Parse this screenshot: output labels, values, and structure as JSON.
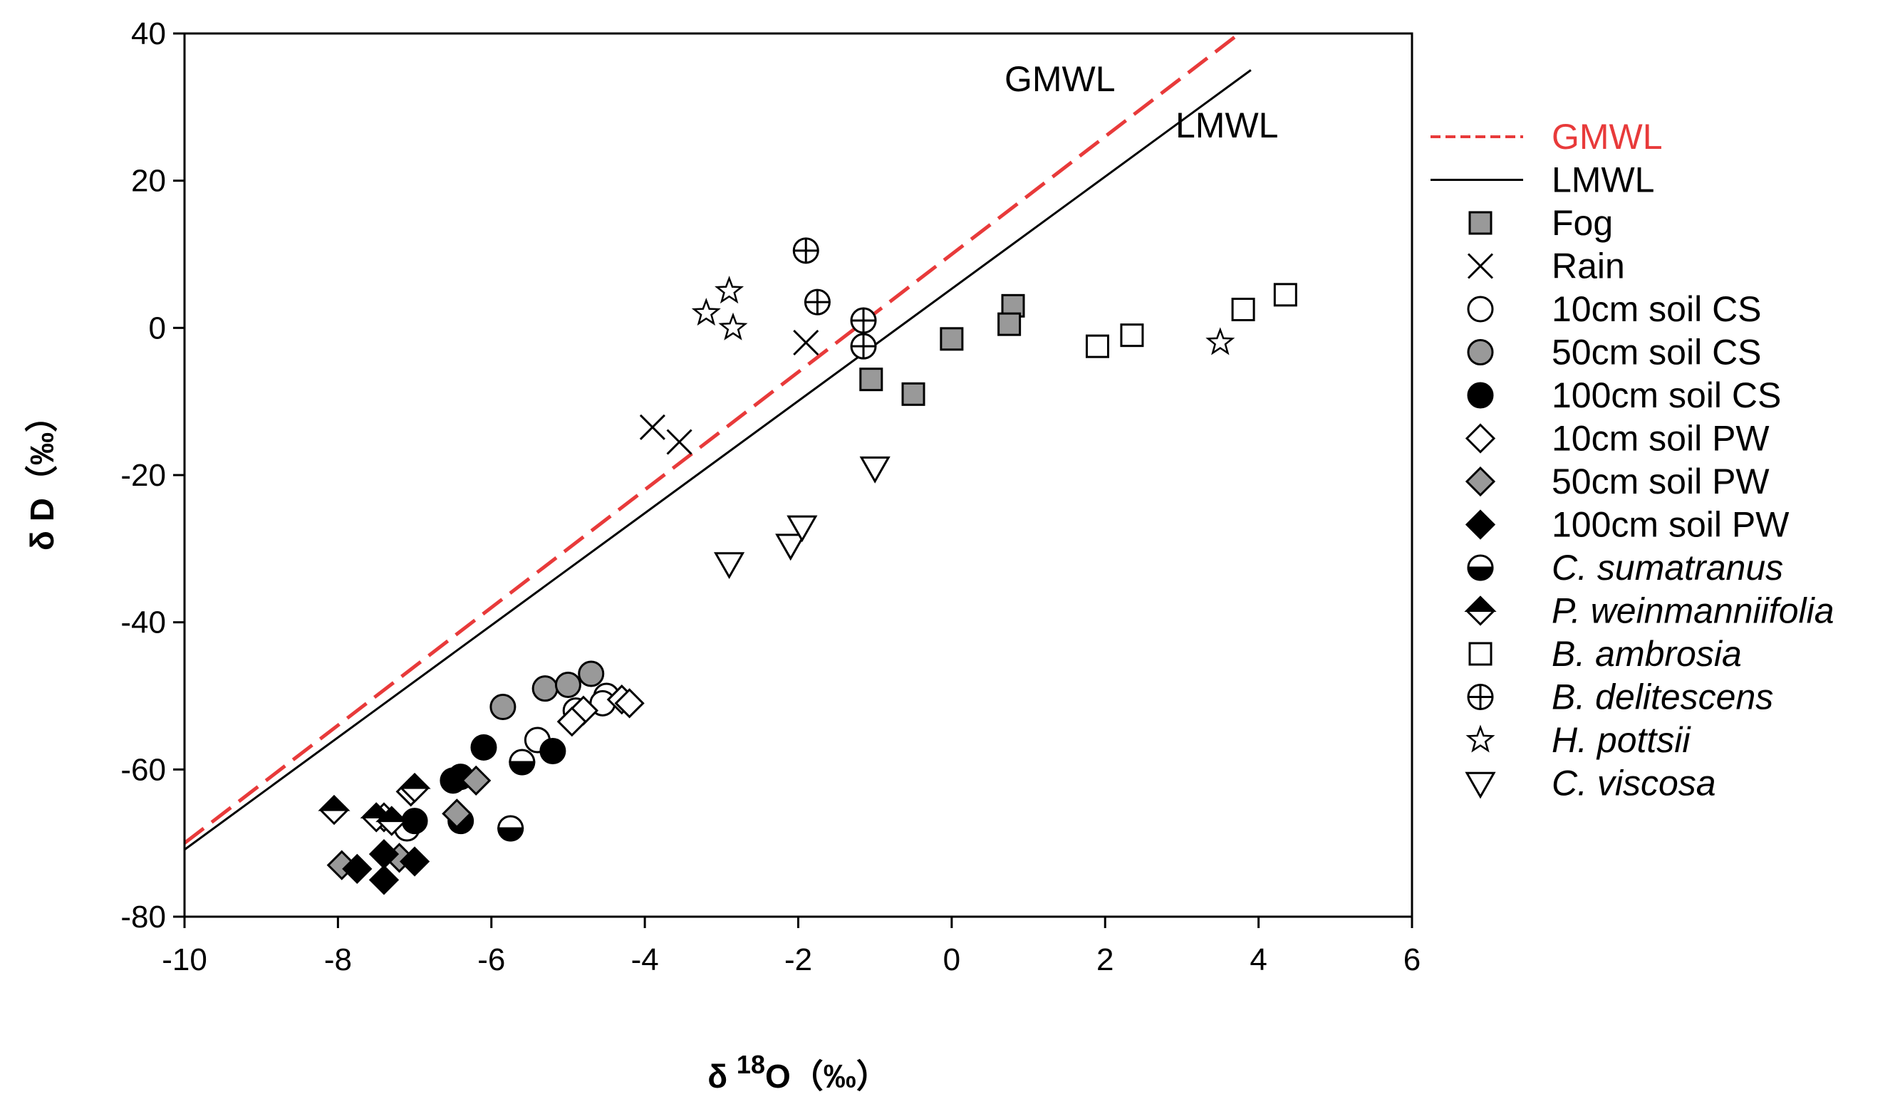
{
  "chart_data": {
    "type": "scatter",
    "title": "",
    "xlabel": "δ 18O（‰）",
    "xlabel_prefix": "δ ",
    "xlabel_sup": "18",
    "xlabel_suffix": "O（‰）",
    "ylabel": "δ D（‰）",
    "xlim": [
      -10,
      6
    ],
    "ylim": [
      -80,
      40
    ],
    "xticks": [
      -10,
      -8,
      -6,
      -4,
      -2,
      0,
      2,
      4,
      6
    ],
    "yticks": [
      -80,
      -60,
      -40,
      -20,
      0,
      20,
      40
    ],
    "grid": false,
    "legend_position": "right",
    "lines": [
      {
        "name": "GMWL",
        "label": "GMWL",
        "slope": 8.0,
        "intercept": 10.0,
        "color": "#e83a3a",
        "style": "dashed",
        "x_range": [
          -10,
          3.75
        ]
      },
      {
        "name": "LMWL",
        "label": "LMWL",
        "slope": 7.62,
        "intercept": 5.31,
        "color": "#000000",
        "style": "solid",
        "x_range": [
          -10,
          3.9
        ]
      }
    ],
    "series": [
      {
        "name": "Fog",
        "marker": "square",
        "fill": "#999999",
        "points": [
          [
            0.8,
            3
          ],
          [
            0.75,
            0.5
          ],
          [
            0,
            -1.5
          ],
          [
            -1.05,
            -7
          ],
          [
            -0.5,
            -9
          ]
        ]
      },
      {
        "name": "Rain",
        "marker": "x",
        "fill": "none",
        "points": [
          [
            -1.9,
            -2
          ],
          [
            -3.9,
            -13.5
          ],
          [
            -3.55,
            -15.5
          ]
        ]
      },
      {
        "name": "10cm soil CS",
        "marker": "circle",
        "fill": "#ffffff",
        "points": [
          [
            -4.5,
            -50
          ],
          [
            -4.55,
            -51
          ],
          [
            -5.4,
            -56
          ],
          [
            -7.1,
            -68
          ],
          [
            -4.9,
            -52
          ]
        ]
      },
      {
        "name": "50cm soil CS",
        "marker": "circle",
        "fill": "#999999",
        "points": [
          [
            -5.85,
            -51.5
          ],
          [
            -5.3,
            -49
          ],
          [
            -5.0,
            -48.5
          ],
          [
            -4.7,
            -47
          ]
        ]
      },
      {
        "name": "100cm soil CS",
        "marker": "circle",
        "fill": "#000000",
        "points": [
          [
            -6.1,
            -57
          ],
          [
            -6.5,
            -61.5
          ],
          [
            -6.4,
            -61
          ],
          [
            -5.2,
            -57.5
          ],
          [
            -6.4,
            -67
          ],
          [
            -7.0,
            -67
          ]
        ]
      },
      {
        "name": "10cm soil PW",
        "marker": "diamond",
        "fill": "#ffffff",
        "points": [
          [
            -4.3,
            -50.5
          ],
          [
            -4.2,
            -51
          ],
          [
            -4.8,
            -52
          ],
          [
            -4.95,
            -53.5
          ],
          [
            -7.4,
            -66.5
          ],
          [
            -7.05,
            -63
          ]
        ]
      },
      {
        "name": "50cm soil PW",
        "marker": "diamond",
        "fill": "#999999",
        "points": [
          [
            -6.2,
            -61.5
          ],
          [
            -6.45,
            -66
          ],
          [
            -7.95,
            -73
          ],
          [
            -7.2,
            -72
          ]
        ]
      },
      {
        "name": "100cm soil PW",
        "marker": "diamond",
        "fill": "#000000",
        "points": [
          [
            -7.4,
            -71.5
          ],
          [
            -7.75,
            -73.5
          ],
          [
            -7.0,
            -72.5
          ],
          [
            -7.4,
            -75
          ]
        ]
      },
      {
        "name": "C. sumatranus",
        "marker": "half-circle",
        "fill": "#000000",
        "points": [
          [
            -5.6,
            -59
          ],
          [
            -5.75,
            -68
          ]
        ]
      },
      {
        "name": "P. weinmanniifolia",
        "marker": "half-diamond",
        "fill": "#000000",
        "points": [
          [
            -8.05,
            -65.5
          ],
          [
            -7.5,
            -66.5
          ],
          [
            -7.0,
            -62.5
          ],
          [
            -7.3,
            -67
          ]
        ]
      },
      {
        "name": "B. ambrosia",
        "marker": "square",
        "fill": "#ffffff",
        "points": [
          [
            4.35,
            4.5
          ],
          [
            3.8,
            2.5
          ],
          [
            2.35,
            -1
          ],
          [
            1.9,
            -2.5
          ]
        ]
      },
      {
        "name": "B. delitescens",
        "marker": "crossed-circle",
        "fill": "#ffffff",
        "points": [
          [
            -1.9,
            10.5
          ],
          [
            -1.75,
            3.5
          ],
          [
            -1.15,
            1
          ],
          [
            -1.15,
            -2.5
          ]
        ]
      },
      {
        "name": "H. pottsii",
        "marker": "star",
        "fill": "#ffffff",
        "points": [
          [
            -3.2,
            2
          ],
          [
            -2.9,
            5
          ],
          [
            -2.85,
            0
          ],
          [
            3.5,
            -2
          ]
        ]
      },
      {
        "name": "C. viscosa",
        "marker": "triangle-down",
        "fill": "#ffffff",
        "points": [
          [
            -2.9,
            -32
          ],
          [
            -2.1,
            -29.5
          ],
          [
            -1.95,
            -27
          ],
          [
            -1.0,
            -19
          ]
        ]
      }
    ],
    "line_labels": [
      {
        "text": "GMWL"
      },
      {
        "text": "LMWL"
      }
    ],
    "legend": [
      {
        "label": "GMWL",
        "type": "line",
        "color": "#e83a3a",
        "style": "dashed",
        "text_color": "#e83a3a",
        "italic": false
      },
      {
        "label": "LMWL",
        "type": "line",
        "color": "#000000",
        "style": "solid",
        "text_color": "#000000",
        "italic": false
      },
      {
        "label": "Fog",
        "type": "marker",
        "series": "Fog",
        "italic": false
      },
      {
        "label": "Rain",
        "type": "marker",
        "series": "Rain",
        "italic": false
      },
      {
        "label": "10cm soil CS",
        "type": "marker",
        "series": "10cm soil CS",
        "italic": false
      },
      {
        "label": "50cm soil CS",
        "type": "marker",
        "series": "50cm soil CS",
        "italic": false
      },
      {
        "label": "100cm soil CS",
        "type": "marker",
        "series": "100cm soil CS",
        "italic": false
      },
      {
        "label": "10cm soil PW",
        "type": "marker",
        "series": "10cm soil PW",
        "italic": false
      },
      {
        "label": "50cm soil PW",
        "type": "marker",
        "series": "50cm soil PW",
        "italic": false
      },
      {
        "label": "100cm soil PW",
        "type": "marker",
        "series": "100cm soil PW",
        "italic": false
      },
      {
        "label": "C. sumatranus",
        "type": "marker",
        "series": "C. sumatranus",
        "italic": true
      },
      {
        "label": "P. weinmanniifolia",
        "type": "marker",
        "series": "P. weinmanniifolia",
        "italic": true
      },
      {
        "label": "B. ambrosia",
        "type": "marker",
        "series": "B. ambrosia",
        "italic": true
      },
      {
        "label": "B. delitescens",
        "type": "marker",
        "series": "B. delitescens",
        "italic": true
      },
      {
        "label": "H. pottsii",
        "type": "marker",
        "series": "H. pottsii",
        "italic": true
      },
      {
        "label": "C. viscosa",
        "type": "marker",
        "series": "C. viscosa",
        "italic": true
      }
    ]
  }
}
